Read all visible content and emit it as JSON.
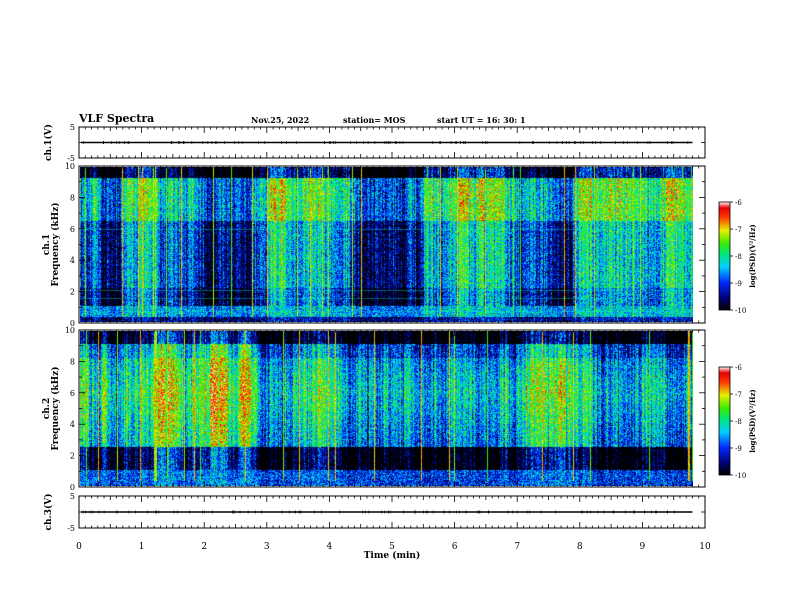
{
  "header": {
    "title": "VLF Spectra",
    "date": "Nov.25, 2022",
    "station": "station= MOS",
    "start": "start  UT =   16: 30: 1"
  },
  "chart_data": [
    {
      "type": "line",
      "name": "ch1-voltage",
      "ylabel": "ch.1(V)",
      "ylim": [
        -5,
        5
      ],
      "yticks": [
        "5",
        "-5"
      ],
      "xlim": [
        0,
        10
      ],
      "level": 0
    },
    {
      "type": "heatmap",
      "name": "ch1-spectrogram",
      "ylabel": "ch.1\nFrequency (kHz)",
      "ylabel_lines": [
        "ch.1",
        "Frequency (kHz)"
      ],
      "ylim": [
        0,
        10
      ],
      "yticks": [
        "0",
        "2",
        "4",
        "6",
        "8",
        "10"
      ],
      "xlim": [
        0,
        10
      ],
      "data_end": 9.8,
      "colorbar": {
        "label": "log(PSD)(V²/Hz)",
        "min": -10,
        "max": -6,
        "ticks": [
          "-6",
          "-7",
          "-8",
          "-9",
          "-10"
        ]
      }
    },
    {
      "type": "heatmap",
      "name": "ch2-spectrogram",
      "ylabel": "ch.2\nFrequency (kHz)",
      "ylabel_lines": [
        "ch.2",
        "Frequency (kHz)"
      ],
      "ylim": [
        0,
        10
      ],
      "yticks": [
        "0",
        "2",
        "4",
        "6",
        "8",
        "10"
      ],
      "xlim": [
        0,
        10
      ],
      "data_end": 9.8,
      "colorbar": {
        "label": "log(PSD)(V²/Hz)",
        "min": -10,
        "max": -6,
        "ticks": [
          "-6",
          "-7",
          "-8",
          "-9",
          "-10"
        ]
      }
    },
    {
      "type": "line",
      "name": "ch3-voltage",
      "ylabel": "ch.3(V)",
      "ylim": [
        -5,
        5
      ],
      "yticks": [
        "5",
        "-5"
      ],
      "xlim": [
        0,
        10
      ],
      "level": 0
    }
  ],
  "xaxis": {
    "label": "Time  (min)",
    "ticks": [
      "0",
      "1",
      "2",
      "3",
      "4",
      "5",
      "6",
      "7",
      "8",
      "9",
      "10"
    ]
  }
}
